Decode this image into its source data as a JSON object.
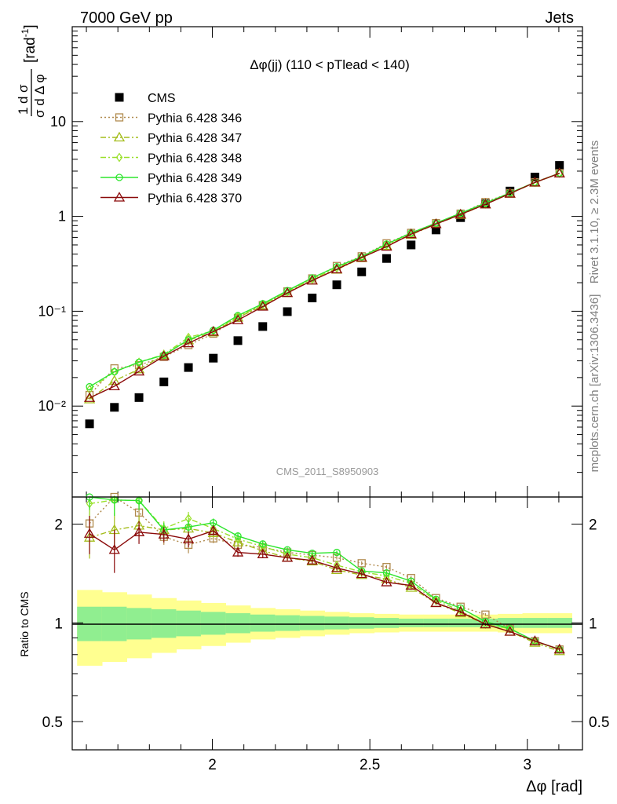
{
  "header": {
    "left": "7000 GeV pp",
    "right": "Jets"
  },
  "side_labels": {
    "rivet": "Rivet 3.1.10, ≥ 2.3M events",
    "mcplots": "mcplots.cern.ch [arXiv:1306.3436]"
  },
  "watermark": "CMS_2011_S8950903",
  "chart_data": [
    {
      "type": "line",
      "title": "Δφ(jj) (110 < pTlead <  140)",
      "xlabel": "Δφ [rad]",
      "ylabel": "1/σ dσ/dΔφ [rad⁻¹]",
      "yscale": "log",
      "xlim": [
        1.555,
        3.175
      ],
      "ylim": [
        0.0011,
        100
      ],
      "yticks": [
        {
          "value": 0.01,
          "label": "10⁻²"
        },
        {
          "value": 0.1,
          "label": "10⁻¹"
        },
        {
          "value": 1,
          "label": "1"
        },
        {
          "value": 10,
          "label": "10"
        }
      ],
      "legend": "top-left",
      "x": [
        1.61,
        1.689,
        1.767,
        1.846,
        1.924,
        2.003,
        2.081,
        2.16,
        2.238,
        2.317,
        2.395,
        2.474,
        2.553,
        2.631,
        2.71,
        2.788,
        2.867,
        2.945,
        3.024,
        3.102
      ],
      "series": [
        {
          "name": "CMS",
          "color": "#000000",
          "marker": "square-filled",
          "line": "none",
          "values": [
            0.0065,
            0.0097,
            0.0123,
            0.018,
            0.0255,
            0.032,
            0.049,
            0.069,
            0.099,
            0.138,
            0.19,
            0.26,
            0.36,
            0.5,
            0.72,
            0.97,
            1.36,
            1.85,
            2.6,
            3.45
          ]
        },
        {
          "name": "Pythia 6.428 346",
          "color": "#b08a4d",
          "marker": "square-open",
          "line": "dotted",
          "values": [
            0.0131,
            0.025,
            0.027,
            0.033,
            0.044,
            0.058,
            0.085,
            0.116,
            0.162,
            0.222,
            0.3,
            0.38,
            0.52,
            0.67,
            0.85,
            1.07,
            1.42,
            1.76,
            2.29,
            2.86
          ]
        },
        {
          "name": "Pythia 6.428 347",
          "color": "#a4bd1c",
          "marker": "triangle-open",
          "line": "dash-dot",
          "values": [
            0.0118,
            0.0185,
            0.0245,
            0.0345,
            0.0495,
            0.06,
            0.086,
            0.114,
            0.156,
            0.212,
            0.275,
            0.364,
            0.49,
            0.64,
            0.83,
            1.04,
            1.34,
            1.74,
            2.27,
            2.84
          ]
        },
        {
          "name": "Pythia 6.428 348",
          "color": "#99e02a",
          "marker": "diamond-open",
          "line": "dash-dot",
          "values": [
            0.015,
            0.023,
            0.029,
            0.035,
            0.053,
            0.062,
            0.088,
            0.118,
            0.16,
            0.218,
            0.285,
            0.372,
            0.5,
            0.66,
            0.84,
            1.06,
            1.35,
            1.77,
            2.28,
            2.85
          ]
        },
        {
          "name": "Pythia 6.428 349",
          "color": "#2ee52e",
          "marker": "circle-open",
          "line": "solid",
          "values": [
            0.016,
            0.023,
            0.029,
            0.0345,
            0.05,
            0.063,
            0.09,
            0.12,
            0.165,
            0.225,
            0.295,
            0.375,
            0.51,
            0.67,
            0.85,
            1.08,
            1.38,
            1.77,
            2.28,
            2.86
          ]
        },
        {
          "name": "Pythia 6.428 370",
          "color": "#8b0a0a",
          "marker": "triangle-open",
          "line": "solid",
          "values": [
            0.0122,
            0.0162,
            0.0232,
            0.0335,
            0.046,
            0.061,
            0.0805,
            0.112,
            0.156,
            0.211,
            0.277,
            0.368,
            0.48,
            0.65,
            0.83,
            1.05,
            1.34,
            1.74,
            2.28,
            2.84
          ]
        }
      ]
    },
    {
      "type": "line",
      "title": "",
      "xlabel": "Δφ [rad]",
      "ylabel": "Ratio to CMS",
      "yscale": "log",
      "xlim": [
        1.555,
        3.175
      ],
      "ylim": [
        0.41,
        2.42
      ],
      "xticks": [
        {
          "value": 2,
          "label": "2"
        },
        {
          "value": 2.5,
          "label": "2.5"
        },
        {
          "value": 3,
          "label": "3"
        }
      ],
      "yticks": [
        {
          "value": 0.5,
          "label": "0.5"
        },
        {
          "value": 1,
          "label": "1"
        },
        {
          "value": 2,
          "label": "2"
        }
      ],
      "reference_line": 1,
      "bands": {
        "inner_color": "#90ee90",
        "outer_color": "#ffff90",
        "inner_halfwidth": [
          0.12,
          0.12,
          0.11,
          0.1,
          0.09,
          0.08,
          0.07,
          0.06,
          0.055,
          0.05,
          0.045,
          0.04,
          0.035,
          0.03,
          0.03,
          0.03,
          0.03,
          0.035,
          0.035,
          0.035
        ],
        "outer_halfwidth": [
          0.26,
          0.24,
          0.22,
          0.19,
          0.17,
          0.15,
          0.13,
          0.11,
          0.1,
          0.09,
          0.08,
          0.07,
          0.065,
          0.06,
          0.06,
          0.06,
          0.06,
          0.065,
          0.07,
          0.07
        ]
      },
      "x": [
        1.61,
        1.689,
        1.767,
        1.846,
        1.924,
        2.003,
        2.081,
        2.16,
        2.238,
        2.317,
        2.395,
        2.474,
        2.553,
        2.631,
        2.71,
        2.788,
        2.867,
        2.945,
        3.024,
        3.102
      ],
      "series": [
        {
          "name": "Pythia 6.428 346",
          "color": "#b08a4d",
          "marker": "square-open",
          "line": "dotted",
          "values": [
            2.01,
            2.57,
            2.17,
            1.83,
            1.73,
            1.81,
            1.73,
            1.7,
            1.64,
            1.61,
            1.58,
            1.52,
            1.48,
            1.37,
            1.19,
            1.12,
            1.06,
            0.96,
            0.88,
            0.83
          ],
          "errors": [
            0.25,
            0.25,
            0.15,
            0.1,
            0.1,
            0.06,
            0.05,
            0.04,
            0.03,
            0.03,
            0.02,
            0.02,
            0.02,
            0.02,
            0.01,
            0.01,
            0.01,
            0.01,
            0.01,
            0.01
          ]
        },
        {
          "name": "Pythia 6.428 347",
          "color": "#a4bd1c",
          "marker": "triangle-open",
          "line": "dash-dot",
          "values": [
            1.82,
            1.92,
            1.98,
            1.92,
            1.94,
            1.88,
            1.76,
            1.66,
            1.58,
            1.54,
            1.45,
            1.4,
            1.36,
            1.28,
            1.15,
            1.07,
            0.99,
            0.94,
            0.87,
            0.82
          ],
          "errors": [
            0.25,
            0.25,
            0.15,
            0.1,
            0.1,
            0.06,
            0.05,
            0.04,
            0.03,
            0.03,
            0.02,
            0.02,
            0.02,
            0.02,
            0.01,
            0.01,
            0.01,
            0.01,
            0.01,
            0.01
          ]
        },
        {
          "name": "Pythia 6.428 348",
          "color": "#99e02a",
          "marker": "diamond-open",
          "line": "dash-dot",
          "values": [
            2.31,
            2.37,
            2.36,
            1.94,
            2.08,
            1.94,
            1.8,
            1.71,
            1.62,
            1.58,
            1.5,
            1.43,
            1.39,
            1.32,
            1.17,
            1.09,
            0.99,
            0.96,
            0.88,
            0.83
          ],
          "errors": [
            0.25,
            0.25,
            0.15,
            0.1,
            0.1,
            0.06,
            0.05,
            0.04,
            0.03,
            0.03,
            0.02,
            0.02,
            0.02,
            0.02,
            0.01,
            0.01,
            0.01,
            0.01,
            0.01,
            0.01
          ]
        },
        {
          "name": "Pythia 6.428 349",
          "color": "#2ee52e",
          "marker": "circle-open",
          "line": "solid",
          "values": [
            2.46,
            2.37,
            2.36,
            1.92,
            1.96,
            2.02,
            1.84,
            1.74,
            1.67,
            1.63,
            1.64,
            1.44,
            1.42,
            1.34,
            1.18,
            1.11,
            1.01,
            0.96,
            0.88,
            0.83
          ],
          "errors": [
            0.25,
            0.25,
            0.15,
            0.1,
            0.1,
            0.06,
            0.05,
            0.04,
            0.03,
            0.03,
            0.02,
            0.02,
            0.02,
            0.02,
            0.01,
            0.01,
            0.01,
            0.01,
            0.01,
            0.01
          ]
        },
        {
          "name": "Pythia 6.428 370",
          "color": "#8b0a0a",
          "marker": "triangle-open",
          "line": "solid",
          "values": [
            1.87,
            1.67,
            1.89,
            1.86,
            1.8,
            1.91,
            1.64,
            1.62,
            1.58,
            1.55,
            1.47,
            1.41,
            1.33,
            1.3,
            1.15,
            1.08,
            0.99,
            0.94,
            0.88,
            0.83
          ],
          "errors": [
            0.25,
            0.25,
            0.15,
            0.1,
            0.1,
            0.06,
            0.05,
            0.04,
            0.03,
            0.03,
            0.02,
            0.02,
            0.02,
            0.02,
            0.01,
            0.01,
            0.01,
            0.01,
            0.01,
            0.01
          ]
        }
      ]
    }
  ]
}
